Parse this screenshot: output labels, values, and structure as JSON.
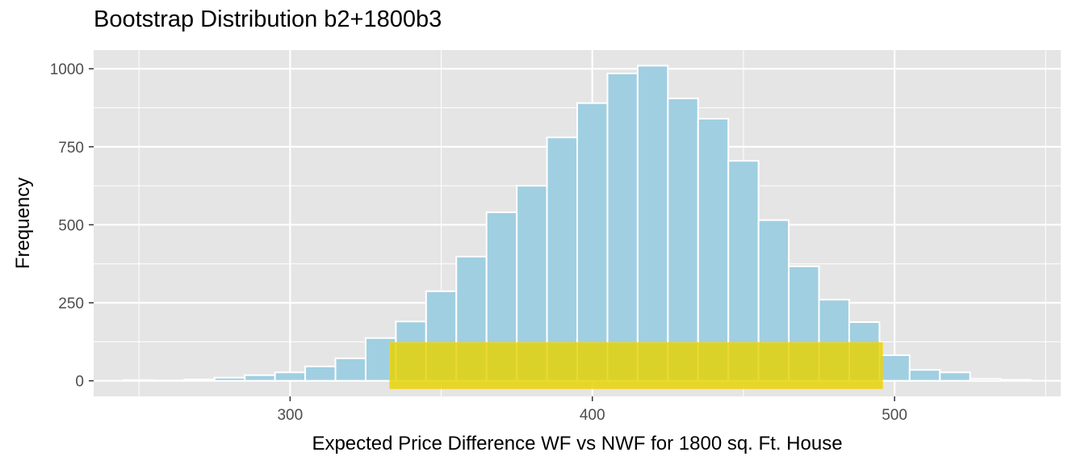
{
  "chart_data": {
    "type": "bar",
    "title": "Bootstrap Distribution b2+1800b3",
    "xlabel": "Expected Price Difference WF vs NWF for 1800 sq. Ft. House",
    "ylabel": "Frequency",
    "xlim": [
      235,
      555
    ],
    "ylim": [
      -50,
      1060
    ],
    "xticks": [
      300,
      400,
      500
    ],
    "yticks": [
      0,
      250,
      500,
      750,
      1000
    ],
    "grid": true,
    "bin_width": 10,
    "bins": [
      {
        "x": 250,
        "count": 2
      },
      {
        "x": 260,
        "count": 1
      },
      {
        "x": 270,
        "count": 4
      },
      {
        "x": 280,
        "count": 10
      },
      {
        "x": 290,
        "count": 18
      },
      {
        "x": 300,
        "count": 27
      },
      {
        "x": 310,
        "count": 46
      },
      {
        "x": 320,
        "count": 72
      },
      {
        "x": 330,
        "count": 137
      },
      {
        "x": 340,
        "count": 190
      },
      {
        "x": 350,
        "count": 287
      },
      {
        "x": 360,
        "count": 398
      },
      {
        "x": 370,
        "count": 540
      },
      {
        "x": 380,
        "count": 625
      },
      {
        "x": 390,
        "count": 780
      },
      {
        "x": 400,
        "count": 890
      },
      {
        "x": 410,
        "count": 985
      },
      {
        "x": 420,
        "count": 1010
      },
      {
        "x": 430,
        "count": 905
      },
      {
        "x": 440,
        "count": 840
      },
      {
        "x": 450,
        "count": 705
      },
      {
        "x": 460,
        "count": 515
      },
      {
        "x": 470,
        "count": 367
      },
      {
        "x": 480,
        "count": 260
      },
      {
        "x": 490,
        "count": 188
      },
      {
        "x": 500,
        "count": 82
      },
      {
        "x": 510,
        "count": 35
      },
      {
        "x": 520,
        "count": 27
      },
      {
        "x": 530,
        "count": 6
      },
      {
        "x": 540,
        "count": 3
      }
    ],
    "interval": {
      "lower": 333,
      "upper": 496,
      "ymin": -25,
      "ymax": 122
    },
    "colors": {
      "bar_fill": "#a0cfe1",
      "bar_stroke": "#ffffff",
      "panel_bg": "#e5e5e5",
      "grid": "#ffffff",
      "interval_fill": "#e6d200",
      "interval_stroke": "#f3d51a"
    }
  }
}
